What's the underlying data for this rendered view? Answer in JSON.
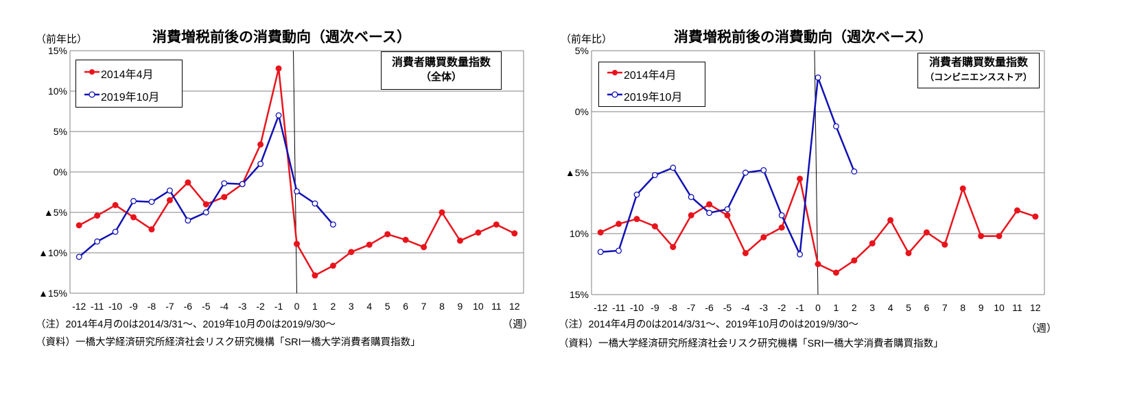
{
  "chart_data": [
    {
      "type": "line",
      "title": "消費増税前後の消費動向（週次ベース）",
      "ylabel": "（前年比）",
      "xlabel": "（週）",
      "ylim": [
        -15,
        15
      ],
      "yticks": [
        15,
        10,
        5,
        0,
        -5,
        -10,
        -15
      ],
      "ytick_labels": [
        "15%",
        "10%",
        "5%",
        "0%",
        "▲5%",
        "▲10%",
        "▲15%"
      ],
      "x": [
        -12,
        -11,
        -10,
        -9,
        -8,
        -7,
        -6,
        -5,
        -4,
        -3,
        -2,
        -1,
        0,
        1,
        2,
        3,
        4,
        5,
        6,
        7,
        8,
        9,
        10,
        11,
        12
      ],
      "xtick_labels": [
        "-12",
        "-11",
        "-10",
        "-9",
        "-8",
        "-7",
        "-6",
        "-5",
        "-4",
        "-3",
        "-2",
        "-1",
        "0",
        "1",
        "2",
        "3",
        "4",
        "5",
        "6",
        "7",
        "8",
        "9",
        "10",
        "11",
        "12"
      ],
      "index_label": [
        "消費者購買数量指数",
        "（全体）"
      ],
      "legend_position": "top-left",
      "grid": "horizontal",
      "series": [
        {
          "name": "2014年4月",
          "color": "#e8141c",
          "marker": "filled-circle",
          "x": [
            -12,
            -11,
            -10,
            -9,
            -8,
            -7,
            -6,
            -5,
            -4,
            -3,
            -2,
            -1,
            0,
            1,
            2,
            3,
            4,
            5,
            6,
            7,
            8,
            9,
            10,
            11,
            12
          ],
          "values": [
            -6.6,
            -5.4,
            -4.1,
            -5.6,
            -7.1,
            -3.5,
            -1.3,
            -4.0,
            -3.1,
            -1.5,
            3.4,
            12.8,
            -8.9,
            -12.8,
            -11.6,
            -9.9,
            -9.0,
            -7.7,
            -8.4,
            -9.3,
            -5.0,
            -8.5,
            -7.5,
            -6.5,
            -7.6
          ]
        },
        {
          "name": "2019年10月",
          "color": "#1010b4",
          "marker": "open-circle",
          "x": [
            -12,
            -11,
            -10,
            -9,
            -8,
            -7,
            -6,
            -5,
            -4,
            -3,
            -2,
            -1,
            0,
            1,
            2
          ],
          "values": [
            -10.5,
            -8.6,
            -7.4,
            -3.6,
            -3.7,
            -2.3,
            -6.0,
            -5.0,
            -1.4,
            -1.5,
            1.0,
            7.0,
            -2.4,
            -3.9,
            -6.5
          ]
        }
      ]
    },
    {
      "type": "line",
      "title": "消費増税前後の消費動向（週次ベース）",
      "ylabel": "（前年比）",
      "xlabel": "（週）",
      "ylim": [
        -15,
        5
      ],
      "yticks": [
        5,
        0,
        -5,
        -10,
        -15
      ],
      "ytick_labels": [
        "5%",
        "0%",
        "▲5%",
        "▲10%",
        "▲15%"
      ],
      "x": [
        -12,
        -11,
        -10,
        -9,
        -8,
        -7,
        -6,
        -5,
        -4,
        -3,
        -2,
        -1,
        0,
        1,
        2,
        3,
        4,
        5,
        6,
        7,
        8,
        9,
        10,
        11,
        12
      ],
      "xtick_labels": [
        "-12",
        "-11",
        "-10",
        "-9",
        "-8",
        "-7",
        "-6",
        "-5",
        "-4",
        "-3",
        "-2",
        "-1",
        "0",
        "1",
        "2",
        "3",
        "4",
        "5",
        "6",
        "7",
        "8",
        "9",
        "10",
        "11",
        "12"
      ],
      "index_label": [
        "消費者購買数量指数",
        "（コンビニエンスストア）"
      ],
      "legend_position": "top-left",
      "grid": "horizontal",
      "series": [
        {
          "name": "2014年4月",
          "color": "#e8141c",
          "marker": "filled-circle",
          "x": [
            -12,
            -11,
            -10,
            -9,
            -8,
            -7,
            -6,
            -5,
            -4,
            -3,
            -2,
            -1,
            0,
            1,
            2,
            3,
            4,
            5,
            6,
            7,
            8,
            9,
            10,
            11,
            12
          ],
          "values": [
            -9.9,
            -9.2,
            -8.8,
            -9.4,
            -11.1,
            -8.5,
            -7.6,
            -8.5,
            -11.6,
            -10.3,
            -9.5,
            -5.5,
            -12.5,
            -13.2,
            -12.2,
            -10.8,
            -8.9,
            -11.6,
            -9.9,
            -10.9,
            -6.3,
            -10.2,
            -10.2,
            -8.1,
            -8.6
          ]
        },
        {
          "name": "2019年10月",
          "color": "#1010b4",
          "marker": "open-circle",
          "x": [
            -12,
            -11,
            -10,
            -9,
            -8,
            -7,
            -6,
            -5,
            -4,
            -3,
            -2,
            -1,
            0,
            1,
            2
          ],
          "values": [
            -11.5,
            -11.4,
            -6.8,
            -5.2,
            -4.6,
            -7.0,
            -8.3,
            -8.0,
            -5.0,
            -4.8,
            -8.5,
            -11.7,
            2.8,
            -1.2,
            -4.9
          ]
        }
      ]
    }
  ],
  "notes": {
    "note1": "（注）2014年4月の0は2014/3/31～、2019年10月の0は2019/9/30～",
    "source": "（資料）一橋大学経済研究所経済社会リスク研究機構「SRI一橋大学消費者購買指数」"
  }
}
